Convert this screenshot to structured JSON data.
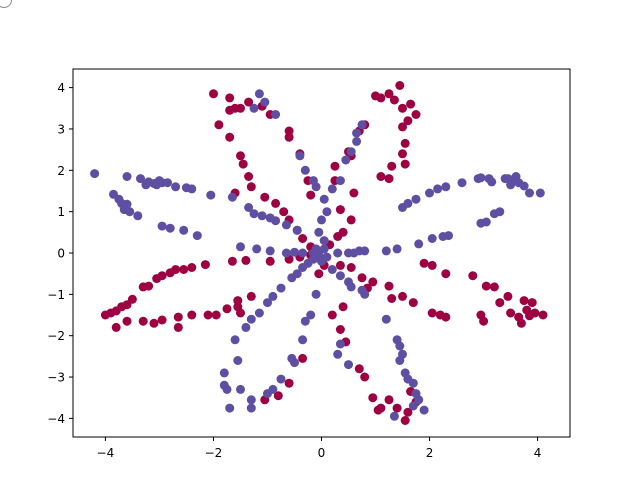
{
  "chart_data": {
    "type": "scatter",
    "title": "",
    "xlabel": "",
    "ylabel": "",
    "xlim": [
      -4.6,
      4.6
    ],
    "ylim": [
      -4.45,
      4.45
    ],
    "xticks": [
      -4,
      -2,
      0,
      2,
      4
    ],
    "yticks": [
      -4,
      -3,
      -2,
      -1,
      0,
      1,
      2,
      3,
      4
    ],
    "xtick_labels": [
      "−4",
      "−2",
      "0",
      "2",
      "4"
    ],
    "ytick_labels": [
      "−4",
      "−3",
      "−2",
      "−1",
      "0",
      "1",
      "2",
      "3",
      "4"
    ],
    "grid": false,
    "legend": "none",
    "series": [
      {
        "color": "#9e0142",
        "points": [
          [
            -2.0,
            3.85
          ],
          [
            -1.7,
            3.75
          ],
          [
            -1.7,
            3.45
          ],
          [
            -1.6,
            3.5
          ],
          [
            -1.5,
            3.5
          ],
          [
            -1.35,
            3.65
          ],
          [
            -1.1,
            3.55
          ],
          [
            -0.95,
            3.35
          ],
          [
            -0.6,
            2.95
          ],
          [
            -0.6,
            2.8
          ],
          [
            -1.9,
            3.1
          ],
          [
            -1.7,
            2.8
          ],
          [
            -1.5,
            2.35
          ],
          [
            -1.45,
            2.15
          ],
          [
            -1.35,
            1.85
          ],
          [
            -1.3,
            1.6
          ],
          [
            -1.6,
            1.45
          ],
          [
            -1.05,
            1.35
          ],
          [
            -0.85,
            1.2
          ],
          [
            -0.7,
            1.0
          ],
          [
            -0.6,
            0.8
          ],
          [
            -0.45,
            0.55
          ],
          [
            -0.35,
            0.35
          ],
          [
            -0.2,
            0.15
          ],
          [
            -0.4,
            2.4
          ],
          [
            -0.25,
            1.75
          ],
          [
            -0.2,
            1.4
          ],
          [
            0.6,
            1.45
          ],
          [
            0.25,
            2.1
          ],
          [
            0.5,
            2.45
          ],
          [
            0.7,
            2.95
          ],
          [
            0.8,
            3.1
          ],
          [
            0.55,
            2.35
          ],
          [
            0.25,
            1.75
          ],
          [
            0.35,
            1.05
          ],
          [
            0.55,
            0.8
          ],
          [
            0.3,
            0.4
          ],
          [
            0.15,
            0.2
          ],
          [
            0.4,
            0.5
          ],
          [
            1.0,
            3.8
          ],
          [
            1.1,
            3.75
          ],
          [
            1.25,
            3.85
          ],
          [
            1.45,
            4.05
          ],
          [
            1.35,
            3.7
          ],
          [
            1.5,
            3.5
          ],
          [
            1.65,
            3.6
          ],
          [
            1.75,
            3.35
          ],
          [
            1.6,
            3.2
          ],
          [
            1.5,
            3.05
          ],
          [
            1.55,
            2.65
          ],
          [
            1.5,
            2.4
          ],
          [
            1.55,
            2.15
          ],
          [
            1.3,
            2.1
          ],
          [
            1.1,
            1.85
          ],
          [
            1.25,
            1.8
          ],
          [
            -4.0,
            -1.5
          ],
          [
            -3.9,
            -1.45
          ],
          [
            -3.8,
            -1.4
          ],
          [
            -3.7,
            -1.3
          ],
          [
            -3.6,
            -1.25
          ],
          [
            -3.5,
            -1.12
          ],
          [
            -3.3,
            -0.82
          ],
          [
            -3.2,
            -0.8
          ],
          [
            -3.05,
            -0.62
          ],
          [
            -2.95,
            -0.55
          ],
          [
            -2.8,
            -0.48
          ],
          [
            -2.7,
            -0.4
          ],
          [
            -2.55,
            -0.4
          ],
          [
            -2.4,
            -0.35
          ],
          [
            -2.15,
            -0.28
          ],
          [
            -1.65,
            -0.2
          ],
          [
            -1.4,
            -0.18
          ],
          [
            -0.95,
            -0.2
          ],
          [
            -0.6,
            -0.15
          ],
          [
            -0.4,
            -0.1
          ],
          [
            -0.2,
            -0.05
          ],
          [
            -3.8,
            -1.8
          ],
          [
            -3.6,
            -1.65
          ],
          [
            -3.3,
            -1.65
          ],
          [
            -3.1,
            -1.7
          ],
          [
            -2.95,
            -1.62
          ],
          [
            -2.65,
            -1.55
          ],
          [
            -2.4,
            -1.5
          ],
          [
            -2.1,
            -1.5
          ],
          [
            -1.75,
            -1.35
          ],
          [
            -1.55,
            -1.3
          ],
          [
            -1.55,
            -1.15
          ],
          [
            -1.3,
            -1.05
          ],
          [
            -2.65,
            -1.8
          ],
          [
            -1.95,
            -1.5
          ],
          [
            -1.5,
            -1.45
          ],
          [
            0.35,
            -0.3
          ],
          [
            0.55,
            -0.35
          ],
          [
            0.75,
            -0.6
          ],
          [
            0.95,
            -0.7
          ],
          [
            1.25,
            -0.8
          ],
          [
            1.5,
            -1.05
          ],
          [
            1.7,
            -1.2
          ],
          [
            2.05,
            -1.45
          ],
          [
            2.2,
            -1.5
          ],
          [
            0.85,
            -0.85
          ],
          [
            1.3,
            -1.1
          ],
          [
            1.9,
            -0.25
          ],
          [
            2.05,
            -0.3
          ],
          [
            2.3,
            -0.5
          ],
          [
            2.8,
            -0.55
          ],
          [
            3.05,
            -0.8
          ],
          [
            3.2,
            -0.82
          ],
          [
            3.45,
            -1.05
          ],
          [
            3.75,
            -1.15
          ],
          [
            3.9,
            -1.2
          ],
          [
            3.85,
            -1.52
          ],
          [
            3.65,
            -1.55
          ],
          [
            3.5,
            -1.45
          ],
          [
            3.8,
            -1.38
          ],
          [
            4.1,
            -1.5
          ],
          [
            3.3,
            -1.2
          ],
          [
            3.0,
            -1.65
          ],
          [
            2.95,
            -1.5
          ],
          [
            3.7,
            -1.7
          ],
          [
            3.95,
            -1.45
          ],
          [
            2.3,
            -1.55
          ],
          [
            0.2,
            -1.5
          ],
          [
            0.35,
            -1.85
          ],
          [
            0.45,
            -2.15
          ],
          [
            0.7,
            -2.8
          ],
          [
            0.8,
            -3.0
          ],
          [
            0.95,
            -3.5
          ],
          [
            1.05,
            -3.8
          ],
          [
            1.25,
            -3.55
          ],
          [
            1.4,
            -3.75
          ],
          [
            1.6,
            -3.85
          ],
          [
            1.55,
            -4.05
          ],
          [
            1.75,
            -3.6
          ],
          [
            1.65,
            -3.35
          ],
          [
            1.1,
            -3.75
          ],
          [
            0.4,
            -1.3
          ],
          [
            -1.05,
            -3.55
          ],
          [
            -0.8,
            -3.45
          ],
          [
            -0.6,
            -3.15
          ],
          [
            -0.35,
            -2.55
          ],
          [
            -0.05,
            -0.5
          ],
          [
            0.05,
            -0.3
          ]
        ]
      },
      {
        "color": "#5e4fa2",
        "points": [
          [
            -4.2,
            1.92
          ],
          [
            -3.85,
            1.42
          ],
          [
            -3.75,
            1.3
          ],
          [
            -3.7,
            1.2
          ],
          [
            -3.6,
            1.18
          ],
          [
            -3.65,
            1.05
          ],
          [
            -3.55,
            1.0
          ],
          [
            -3.4,
            0.9
          ],
          [
            -3.35,
            1.8
          ],
          [
            -3.6,
            1.85
          ],
          [
            -3.2,
            1.72
          ],
          [
            -3.1,
            1.68
          ],
          [
            -3.0,
            1.75
          ],
          [
            -2.95,
            1.7
          ],
          [
            -2.85,
            1.7
          ],
          [
            -2.7,
            1.6
          ],
          [
            -2.5,
            1.58
          ],
          [
            -2.4,
            1.55
          ],
          [
            -3.05,
            1.65
          ],
          [
            -3.25,
            1.65
          ],
          [
            -2.05,
            1.4
          ],
          [
            -1.65,
            1.35
          ],
          [
            -1.35,
            1.1
          ],
          [
            -1.25,
            0.95
          ],
          [
            -1.1,
            0.9
          ],
          [
            -0.95,
            0.85
          ],
          [
            -0.85,
            0.78
          ],
          [
            -0.65,
            0.68
          ],
          [
            -0.45,
            0.55
          ],
          [
            -2.95,
            0.65
          ],
          [
            -2.8,
            0.6
          ],
          [
            -2.55,
            0.55
          ],
          [
            -2.3,
            0.42
          ],
          [
            -1.5,
            0.15
          ],
          [
            -1.2,
            0.1
          ],
          [
            -0.95,
            0.05
          ],
          [
            -0.65,
            0.0
          ],
          [
            -0.5,
            0.02
          ],
          [
            -0.35,
            0.0
          ],
          [
            -0.15,
            0.0
          ],
          [
            -1.15,
            3.85
          ],
          [
            -1.05,
            3.65
          ],
          [
            -0.85,
            3.35
          ],
          [
            -1.25,
            3.5
          ],
          [
            -0.4,
            2.35
          ],
          [
            -0.3,
            2.0
          ],
          [
            -0.15,
            1.75
          ],
          [
            -0.1,
            1.6
          ],
          [
            0.05,
            1.3
          ],
          [
            0.1,
            1.0
          ],
          [
            0.0,
            0.8
          ],
          [
            -0.05,
            0.5
          ],
          [
            0.05,
            0.3
          ],
          [
            0.2,
            1.55
          ],
          [
            0.45,
            2.25
          ],
          [
            0.55,
            2.45
          ],
          [
            0.65,
            2.7
          ],
          [
            0.65,
            2.9
          ],
          [
            0.75,
            3.1
          ],
          [
            0.35,
            1.75
          ],
          [
            2.15,
            1.55
          ],
          [
            2.3,
            1.6
          ],
          [
            2.6,
            1.7
          ],
          [
            2.9,
            1.8
          ],
          [
            2.95,
            1.82
          ],
          [
            3.1,
            1.8
          ],
          [
            3.15,
            1.72
          ],
          [
            3.4,
            1.8
          ],
          [
            3.45,
            1.8
          ],
          [
            3.55,
            1.75
          ],
          [
            3.6,
            1.85
          ],
          [
            3.65,
            1.7
          ],
          [
            3.75,
            1.62
          ],
          [
            3.85,
            1.45
          ],
          [
            4.05,
            1.45
          ],
          [
            3.5,
            1.65
          ],
          [
            3.3,
            1.0
          ],
          [
            3.2,
            0.95
          ],
          [
            2.95,
            0.72
          ],
          [
            3.05,
            0.75
          ],
          [
            2.35,
            0.42
          ],
          [
            2.25,
            0.4
          ],
          [
            2.05,
            0.35
          ],
          [
            1.8,
            0.22
          ],
          [
            1.4,
            0.1
          ],
          [
            1.2,
            0.05
          ],
          [
            0.8,
            0.05
          ],
          [
            0.7,
            0.05
          ],
          [
            0.6,
            0.0
          ],
          [
            0.5,
            0.0
          ],
          [
            0.3,
            0.0
          ],
          [
            1.5,
            1.1
          ],
          [
            1.6,
            1.2
          ],
          [
            1.75,
            1.3
          ],
          [
            2.0,
            1.45
          ],
          [
            0.2,
            -0.4
          ],
          [
            0.35,
            -0.55
          ],
          [
            0.5,
            -0.7
          ],
          [
            0.55,
            -0.82
          ],
          [
            0.75,
            -0.9
          ],
          [
            0.8,
            -1.0
          ],
          [
            -0.25,
            -0.25
          ],
          [
            -0.35,
            -0.35
          ],
          [
            -0.45,
            -0.5
          ],
          [
            -0.55,
            -0.6
          ],
          [
            -0.75,
            -0.85
          ],
          [
            -0.9,
            -1.05
          ],
          [
            -1.0,
            -1.2
          ],
          [
            -1.15,
            -1.45
          ],
          [
            -1.3,
            -1.6
          ],
          [
            -1.4,
            -1.8
          ],
          [
            -1.6,
            -2.1
          ],
          [
            -1.55,
            -2.6
          ],
          [
            -1.8,
            -2.9
          ],
          [
            -1.8,
            -3.2
          ],
          [
            -1.75,
            -3.3
          ],
          [
            -1.5,
            -3.3
          ],
          [
            -1.7,
            -3.75
          ],
          [
            -1.3,
            -3.55
          ],
          [
            -1.3,
            -3.75
          ],
          [
            -1.0,
            -3.4
          ],
          [
            -0.9,
            -3.3
          ],
          [
            -0.75,
            -3.05
          ],
          [
            -0.5,
            -2.65
          ],
          [
            -0.55,
            -2.55
          ],
          [
            -0.35,
            -2.1
          ],
          [
            -0.3,
            -1.65
          ],
          [
            -0.2,
            -1.5
          ],
          [
            -0.1,
            -1.0
          ],
          [
            0.3,
            -2.45
          ],
          [
            0.5,
            -2.7
          ],
          [
            0.35,
            -2.2
          ],
          [
            1.45,
            -2.25
          ],
          [
            1.5,
            -2.45
          ],
          [
            1.45,
            -2.6
          ],
          [
            1.55,
            -2.9
          ],
          [
            1.6,
            -3.05
          ],
          [
            1.7,
            -3.15
          ],
          [
            1.75,
            -3.4
          ],
          [
            1.8,
            -3.55
          ],
          [
            1.7,
            -3.7
          ],
          [
            1.9,
            -3.8
          ],
          [
            1.35,
            -3.95
          ],
          [
            1.2,
            -1.6
          ],
          [
            1.4,
            -2.1
          ],
          [
            -0.05,
            -0.05
          ],
          [
            -0.1,
            0.1
          ],
          [
            0.0,
            -0.2
          ],
          [
            -0.15,
            -0.15
          ],
          [
            0.05,
            0.1
          ],
          [
            0.1,
            -0.1
          ]
        ]
      }
    ]
  }
}
